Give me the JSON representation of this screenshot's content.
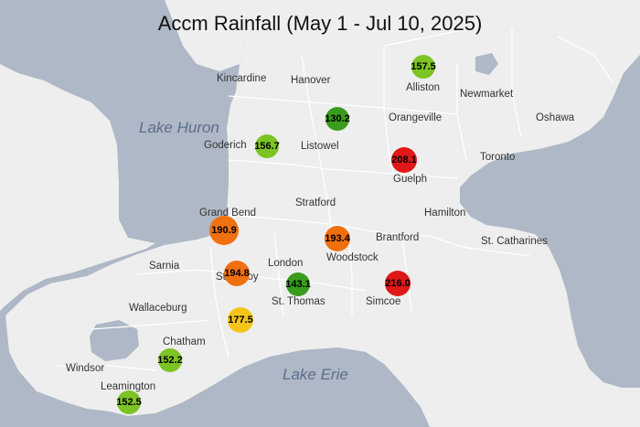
{
  "title": "Accm Rainfall (May 1 - Jul 10, 2025)",
  "colors": {
    "water": "#aeb8c6",
    "land": "#eeeeee",
    "boundary": "#ffffff"
  },
  "lakes": {
    "huron": "Lake Huron",
    "erie": "Lake Erie"
  },
  "places": {
    "kincardine": "Kincardine",
    "hanover": "Hanover",
    "alliston": "Alliston",
    "newmarket": "Newmarket",
    "oshawa": "Oshawa",
    "orangeville": "Orangeville",
    "goderich": "Goderich",
    "listowel": "Listowel",
    "toronto": "Toronto",
    "guelph": "Guelph",
    "stratford": "Stratford",
    "grand_bend": "Grand Bend",
    "hamilton": "Hamilton",
    "brantford": "Brantford",
    "st_catharines": "St. Catharines",
    "sarnia": "Sarnia",
    "london": "London",
    "woodstock": "Woodstock",
    "strathroy": "Strathroy",
    "st_thomas": "St. Thomas",
    "simcoe": "Simcoe",
    "wallaceburg": "Wallaceburg",
    "chatham": "Chatham",
    "windsor": "Windsor",
    "leamington": "Leamington"
  },
  "rainfall": {
    "alliston": {
      "value": "157.5",
      "color": "#7cc424"
    },
    "hanover": {
      "value": "130.2",
      "color": "#3a9c1c"
    },
    "goderich": {
      "value": "156.7",
      "color": "#7cc424"
    },
    "guelph": {
      "value": "208.1",
      "color": "#e01818"
    },
    "grand_bend": {
      "value": "190.9",
      "color": "#f07010"
    },
    "woodstock": {
      "value": "193.4",
      "color": "#f07010"
    },
    "strathroy": {
      "value": "194.8",
      "color": "#f07010"
    },
    "st_thomas": {
      "value": "143.1",
      "color": "#3a9c1c"
    },
    "simcoe": {
      "value": "216.0",
      "color": "#e01818"
    },
    "rondeau": {
      "value": "177.5",
      "color": "#f5c518"
    },
    "chatham": {
      "value": "152.2",
      "color": "#7cc424"
    },
    "leamington": {
      "value": "152.5",
      "color": "#7cc424"
    }
  }
}
